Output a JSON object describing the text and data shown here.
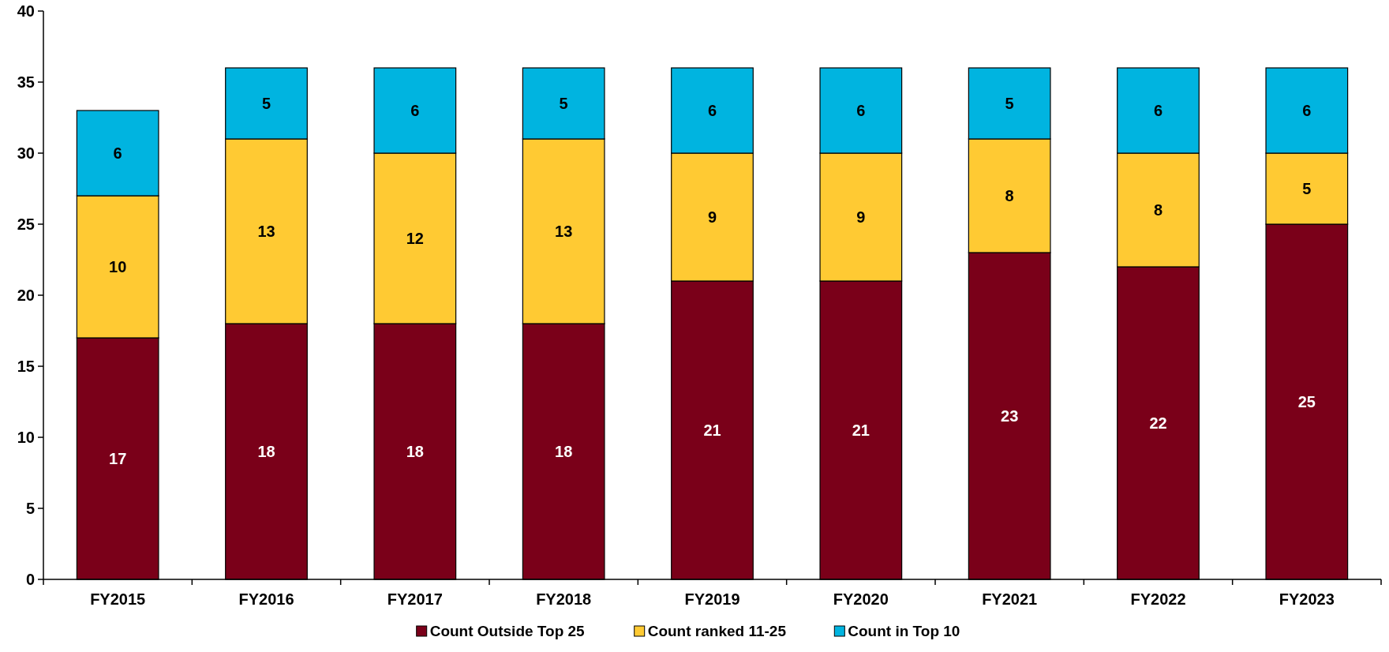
{
  "chart_data": {
    "type": "bar",
    "stacked": true,
    "categories": [
      "FY2015",
      "FY2016",
      "FY2017",
      "FY2018",
      "FY2019",
      "FY2020",
      "FY2021",
      "FY2022",
      "FY2023"
    ],
    "series": [
      {
        "name": "Count Outside Top 25",
        "color": "#7a0019",
        "values": [
          17,
          18,
          18,
          18,
          21,
          21,
          23,
          22,
          25
        ]
      },
      {
        "name": "Count ranked 11-25",
        "color": "#ffca33",
        "values": [
          10,
          13,
          12,
          13,
          9,
          9,
          8,
          8,
          5
        ]
      },
      {
        "name": "Count in Top 10",
        "color": "#00b4e0",
        "values": [
          6,
          5,
          6,
          5,
          6,
          6,
          5,
          6,
          6
        ]
      }
    ],
    "ylim": [
      0,
      40
    ],
    "yticks": [
      0,
      5,
      10,
      15,
      20,
      25,
      30,
      35,
      40
    ],
    "data_labels": true,
    "legend": "bottom",
    "grid": false
  }
}
